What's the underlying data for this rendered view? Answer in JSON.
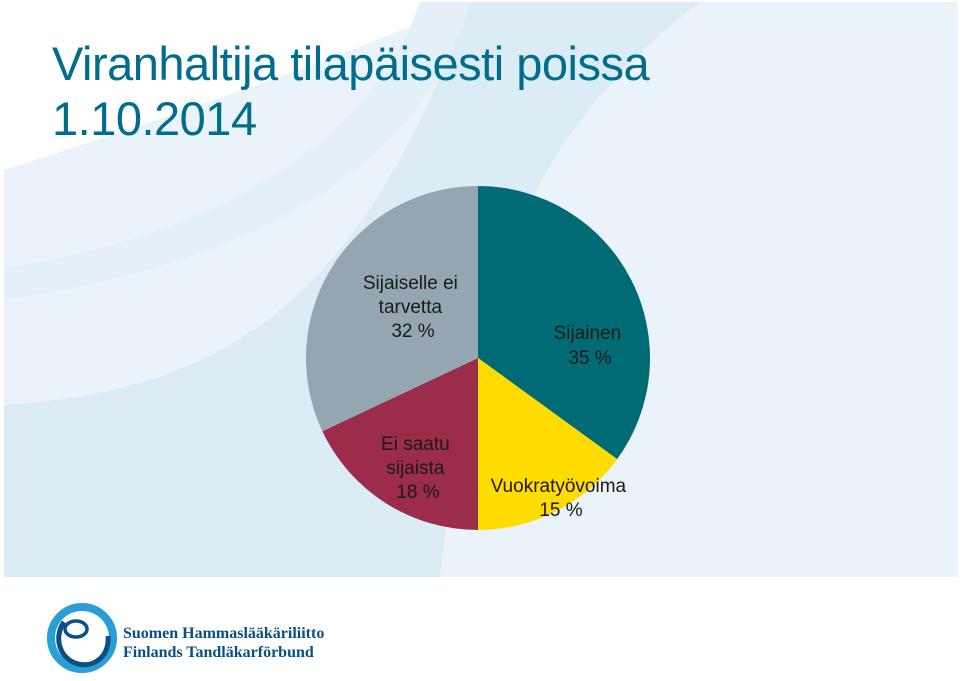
{
  "slide": {
    "title_line1": "Viranhaltija tilapäisesti poissa",
    "title_line2": "1.10.2014",
    "title_color": "#006d8f",
    "background_colors": [
      "#dcecf4",
      "#eaf3f9"
    ]
  },
  "chart_data": {
    "type": "pie",
    "title": "Viranhaltija tilapäisesti poissa 1.10.2014",
    "start_angle_deg": 0,
    "direction": "clockwise",
    "legend": "none",
    "slices": [
      {
        "label": "Sijainen",
        "value": 35,
        "value_text": "35 %",
        "color": "#006b74"
      },
      {
        "label": "Vuokratyövoima",
        "value": 15,
        "value_text": "15 %",
        "color": "#ffdc00"
      },
      {
        "label": "Ei saatu sijaista",
        "value": 18,
        "value_text": "18 %",
        "color": "#9b2d4b"
      },
      {
        "label": "Sijaiselle ei tarvetta",
        "value": 32,
        "value_text": "32 %",
        "color": "#94a7b1"
      }
    ]
  },
  "logo": {
    "line1": "Suomen Hammaslääkäriliitto",
    "line2": "Finlands Tandläkarförbund",
    "color": "#0a4f84",
    "icon": "tooth-circle-logo-icon"
  }
}
